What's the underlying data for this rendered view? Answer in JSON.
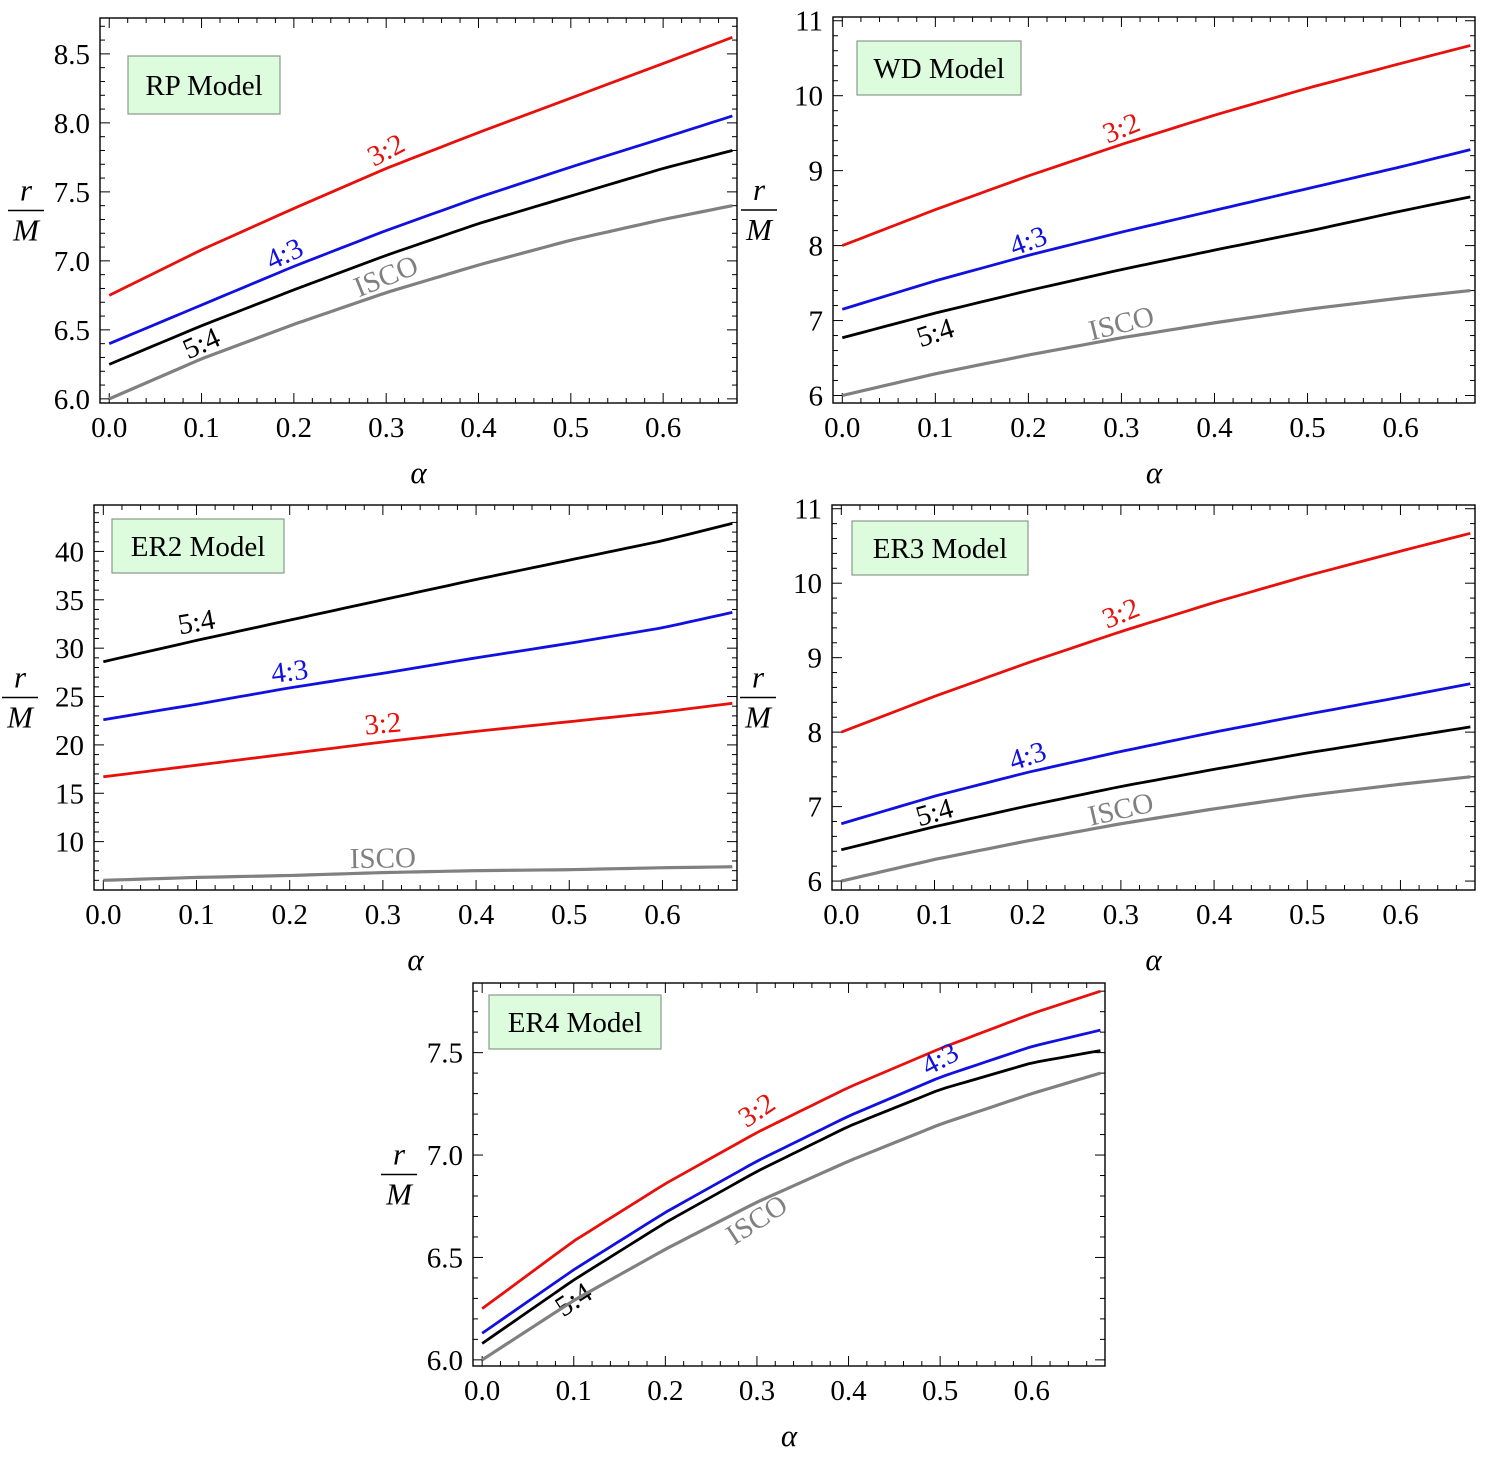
{
  "figure": {
    "fraction_numerator": "r",
    "fraction_denominator": "M"
  },
  "chart_data": [
    {
      "type": "line",
      "title": "RP Model",
      "xlabel": "α",
      "ylabel": "r/M",
      "xlim": [
        -0.01,
        0.68
      ],
      "ylim": [
        5.97,
        8.76
      ],
      "xticks": [
        0.0,
        0.1,
        0.2,
        0.3,
        0.4,
        0.5,
        0.6
      ],
      "xtick_labels": [
        "0.0",
        "0.1",
        "0.2",
        "0.3",
        "0.4",
        "0.5",
        "0.6"
      ],
      "yticks": [
        6.0,
        6.5,
        7.0,
        7.5,
        8.0,
        8.5
      ],
      "ytick_labels": [
        "6.0",
        "6.5",
        "7.0",
        "7.5",
        "8.0",
        "8.5"
      ],
      "x": [
        0.0,
        0.1,
        0.2,
        0.3,
        0.4,
        0.5,
        0.6,
        0.675
      ],
      "series": [
        {
          "name": "3:2",
          "color": "#e8100b",
          "values": [
            6.75,
            7.08,
            7.38,
            7.67,
            7.93,
            8.18,
            8.43,
            8.62
          ],
          "label_x": 0.3,
          "label_rot": -28
        },
        {
          "name": "4:3",
          "color": "#1010e0",
          "values": [
            6.4,
            6.68,
            6.96,
            7.22,
            7.46,
            7.68,
            7.89,
            8.05
          ],
          "label_x": 0.19,
          "label_rot": -25
        },
        {
          "name": "5:4",
          "color": "#000000",
          "values": [
            6.25,
            6.53,
            6.79,
            7.04,
            7.27,
            7.47,
            7.67,
            7.8
          ],
          "label_x": 0.1,
          "label_rot": -24
        },
        {
          "name": "ISCO",
          "color": "#808080",
          "values": [
            6.0,
            6.29,
            6.54,
            6.77,
            6.97,
            7.15,
            7.3,
            7.4
          ],
          "label_x": 0.3,
          "label_rot": -22
        }
      ]
    },
    {
      "type": "line",
      "title": "WD Model",
      "xlabel": "α",
      "ylabel": "r/M",
      "xlim": [
        -0.01,
        0.68
      ],
      "ylim": [
        5.9,
        11.05
      ],
      "xticks": [
        0.0,
        0.1,
        0.2,
        0.3,
        0.4,
        0.5,
        0.6
      ],
      "xtick_labels": [
        "0.0",
        "0.1",
        "0.2",
        "0.3",
        "0.4",
        "0.5",
        "0.6"
      ],
      "yticks": [
        6,
        7,
        8,
        9,
        10,
        11
      ],
      "ytick_labels": [
        "6",
        "7",
        "8",
        "9",
        "10",
        "11"
      ],
      "x": [
        0.0,
        0.1,
        0.2,
        0.3,
        0.4,
        0.5,
        0.6,
        0.675
      ],
      "series": [
        {
          "name": "3:2",
          "color": "#e8100b",
          "values": [
            8.0,
            8.48,
            8.93,
            9.35,
            9.74,
            10.1,
            10.43,
            10.67
          ],
          "label_x": 0.3,
          "label_rot": -22
        },
        {
          "name": "4:3",
          "color": "#1010e0",
          "values": [
            7.15,
            7.53,
            7.87,
            8.18,
            8.47,
            8.76,
            9.05,
            9.28
          ],
          "label_x": 0.2,
          "label_rot": -20
        },
        {
          "name": "5:4",
          "color": "#000000",
          "values": [
            6.77,
            7.1,
            7.4,
            7.68,
            7.94,
            8.19,
            8.46,
            8.65
          ],
          "label_x": 0.1,
          "label_rot": -18
        },
        {
          "name": "ISCO",
          "color": "#808080",
          "values": [
            6.0,
            6.29,
            6.54,
            6.77,
            6.97,
            7.15,
            7.3,
            7.4
          ],
          "label_x": 0.3,
          "label_rot": -14
        }
      ]
    },
    {
      "type": "line",
      "title": "ER2 Model",
      "xlabel": "α",
      "ylabel": "r/M",
      "xlim": [
        -0.01,
        0.68
      ],
      "ylim": [
        5.0,
        44.8
      ],
      "xticks": [
        0.0,
        0.1,
        0.2,
        0.3,
        0.4,
        0.5,
        0.6
      ],
      "xtick_labels": [
        "0.0",
        "0.1",
        "0.2",
        "0.3",
        "0.4",
        "0.5",
        "0.6"
      ],
      "yticks": [
        10,
        15,
        20,
        25,
        30,
        35,
        40
      ],
      "ytick_labels": [
        "10",
        "15",
        "20",
        "25",
        "30",
        "35",
        "40"
      ],
      "x": [
        0.0,
        0.1,
        0.2,
        0.3,
        0.4,
        0.5,
        0.6,
        0.675
      ],
      "series": [
        {
          "name": "5:4",
          "color": "#000000",
          "values": [
            28.6,
            30.8,
            32.9,
            35.0,
            37.1,
            39.1,
            41.1,
            42.9
          ],
          "label_x": 0.1,
          "label_rot": -10
        },
        {
          "name": "4:3",
          "color": "#1010e0",
          "values": [
            22.6,
            24.2,
            25.9,
            27.4,
            29.0,
            30.5,
            32.1,
            33.7
          ],
          "label_x": 0.2,
          "label_rot": -7
        },
        {
          "name": "3:2",
          "color": "#e8100b",
          "values": [
            16.7,
            17.9,
            19.1,
            20.3,
            21.4,
            22.4,
            23.4,
            24.3
          ],
          "label_x": 0.3,
          "label_rot": -5
        },
        {
          "name": "ISCO",
          "color": "#808080",
          "values": [
            6.0,
            6.3,
            6.5,
            6.8,
            7.0,
            7.1,
            7.3,
            7.4
          ],
          "label_x": 0.3,
          "label_rot": -1
        }
      ]
    },
    {
      "type": "line",
      "title": "ER3 Model",
      "xlabel": "α",
      "ylabel": "r/M",
      "xlim": [
        -0.01,
        0.68
      ],
      "ylim": [
        5.88,
        11.05
      ],
      "xticks": [
        0.0,
        0.1,
        0.2,
        0.3,
        0.4,
        0.5,
        0.6
      ],
      "xtick_labels": [
        "0.0",
        "0.1",
        "0.2",
        "0.3",
        "0.4",
        "0.5",
        "0.6"
      ],
      "yticks": [
        6,
        7,
        8,
        9,
        10,
        11
      ],
      "ytick_labels": [
        "6",
        "7",
        "8",
        "9",
        "10",
        "11"
      ],
      "x": [
        0.0,
        0.1,
        0.2,
        0.3,
        0.4,
        0.5,
        0.6,
        0.675
      ],
      "series": [
        {
          "name": "3:2",
          "color": "#e8100b",
          "values": [
            8.0,
            8.48,
            8.93,
            9.35,
            9.74,
            10.1,
            10.43,
            10.67
          ],
          "label_x": 0.3,
          "label_rot": -22
        },
        {
          "name": "4:3",
          "color": "#1010e0",
          "values": [
            6.77,
            7.14,
            7.46,
            7.74,
            8.0,
            8.24,
            8.47,
            8.65
          ],
          "label_x": 0.2,
          "label_rot": -18
        },
        {
          "name": "5:4",
          "color": "#000000",
          "values": [
            6.42,
            6.73,
            7.01,
            7.27,
            7.5,
            7.72,
            7.92,
            8.07
          ],
          "label_x": 0.1,
          "label_rot": -16
        },
        {
          "name": "ISCO",
          "color": "#808080",
          "values": [
            6.0,
            6.29,
            6.54,
            6.77,
            6.97,
            7.15,
            7.3,
            7.4
          ],
          "label_x": 0.3,
          "label_rot": -13
        }
      ]
    },
    {
      "type": "line",
      "title": "ER4 Model",
      "xlabel": "α",
      "ylabel": "r/M",
      "xlim": [
        -0.01,
        0.68
      ],
      "ylim": [
        5.97,
        7.84
      ],
      "xticks": [
        0.0,
        0.1,
        0.2,
        0.3,
        0.4,
        0.5,
        0.6
      ],
      "xtick_labels": [
        "0.0",
        "0.1",
        "0.2",
        "0.3",
        "0.4",
        "0.5",
        "0.6"
      ],
      "yticks": [
        6.0,
        6.5,
        7.0,
        7.5
      ],
      "ytick_labels": [
        "6.0",
        "6.5",
        "7.0",
        "7.5"
      ],
      "x": [
        0.0,
        0.1,
        0.2,
        0.3,
        0.4,
        0.5,
        0.6,
        0.675
      ],
      "series": [
        {
          "name": "3:2",
          "color": "#e8100b",
          "values": [
            6.25,
            6.58,
            6.86,
            7.11,
            7.33,
            7.52,
            7.69,
            7.8
          ],
          "label_x": 0.3,
          "label_rot": -34
        },
        {
          "name": "4:3",
          "color": "#1010e0",
          "values": [
            6.13,
            6.44,
            6.72,
            6.97,
            7.19,
            7.38,
            7.53,
            7.61
          ],
          "label_x": 0.5,
          "label_rot": -28
        },
        {
          "name": "5:4",
          "color": "#000000",
          "values": [
            6.08,
            6.39,
            6.67,
            6.92,
            7.14,
            7.32,
            7.45,
            7.51
          ],
          "label_x": 0.1,
          "label_rot": -33
        },
        {
          "name": "ISCO",
          "color": "#808080",
          "values": [
            6.0,
            6.29,
            6.54,
            6.77,
            6.97,
            7.15,
            7.3,
            7.4
          ],
          "label_x": 0.3,
          "label_rot": -33
        }
      ]
    }
  ]
}
